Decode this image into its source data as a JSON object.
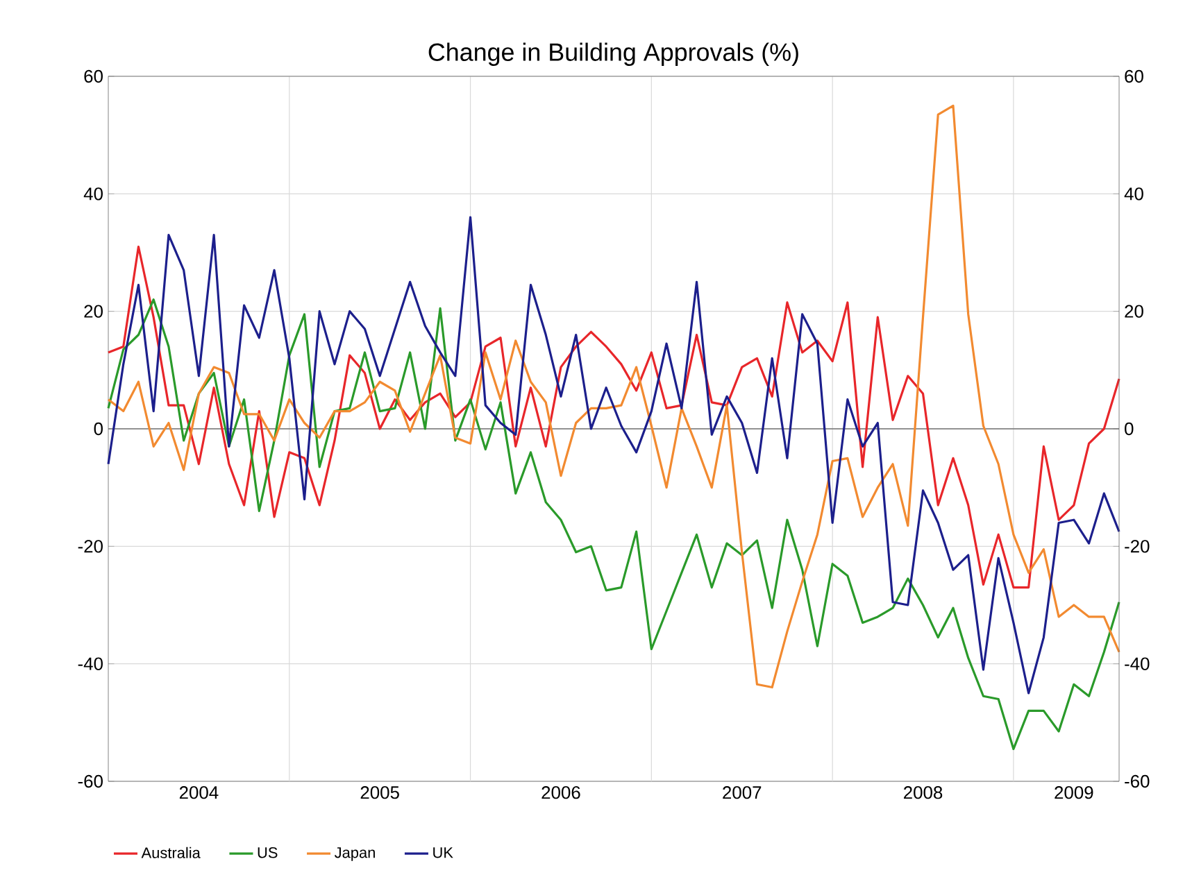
{
  "chart_data": {
    "type": "line",
    "title": "Change in Building Approvals (%)",
    "x": [
      "2004-01",
      "2004-02",
      "2004-03",
      "2004-04",
      "2004-05",
      "2004-06",
      "2004-07",
      "2004-08",
      "2004-09",
      "2004-10",
      "2004-11",
      "2004-12",
      "2005-01",
      "2005-02",
      "2005-03",
      "2005-04",
      "2005-05",
      "2005-06",
      "2005-07",
      "2005-08",
      "2005-09",
      "2005-10",
      "2005-11",
      "2005-12",
      "2006-01",
      "2006-02",
      "2006-03",
      "2006-04",
      "2006-05",
      "2006-06",
      "2006-07",
      "2006-08",
      "2006-09",
      "2006-10",
      "2006-11",
      "2006-12",
      "2007-01",
      "2007-02",
      "2007-03",
      "2007-04",
      "2007-05",
      "2007-06",
      "2007-07",
      "2007-08",
      "2007-09",
      "2007-10",
      "2007-11",
      "2007-12",
      "2008-01",
      "2008-02",
      "2008-03",
      "2008-04",
      "2008-05",
      "2008-06",
      "2008-07",
      "2008-08",
      "2008-09",
      "2008-10",
      "2008-11",
      "2008-12",
      "2009-01",
      "2009-02",
      "2009-03",
      "2009-04",
      "2009-05",
      "2009-06",
      "2009-07",
      "2009-08"
    ],
    "series": [
      {
        "name": "Australia",
        "color": "#e8262a",
        "values": [
          13,
          14,
          31,
          19,
          4,
          4,
          -6,
          7,
          -6,
          -13,
          3,
          -15,
          -4,
          -5,
          -13,
          -2,
          12.5,
          9.5,
          0,
          5,
          1.5,
          4.5,
          6,
          2,
          4.5,
          14,
          15.5,
          -3,
          7,
          -3,
          10.5,
          14,
          16.5,
          14,
          11,
          6.5,
          13,
          3.5,
          4,
          16,
          4.5,
          4,
          10.5,
          12,
          5.5,
          21.5,
          13,
          15,
          11.5,
          21.5,
          -6.5,
          19,
          1.5,
          9,
          6,
          -13,
          -5,
          -13,
          -26.5,
          -18,
          -27,
          -27,
          -3,
          -15.5,
          -13,
          -2.5,
          0,
          8.5
        ]
      },
      {
        "name": "US",
        "color": "#2a9a2a",
        "values": [
          3.5,
          13.5,
          16,
          22,
          14,
          -2,
          6,
          9.5,
          -3,
          5,
          -14,
          -2,
          12.5,
          19.5,
          -6.5,
          3,
          3.5,
          13,
          3,
          3.5,
          13,
          0,
          20.5,
          -2,
          5,
          -3.5,
          4.5,
          -11,
          -4,
          -12.5,
          -15.5,
          -21,
          -20,
          -27.5,
          -27,
          -17.5,
          -37.5,
          -31,
          -24.5,
          -18,
          -27,
          -19.5,
          -21.5,
          -19,
          -30.5,
          -15.5,
          -24,
          -37,
          -23,
          -25,
          -33,
          -32,
          -30.5,
          -25.5,
          -30,
          -35.5,
          -30.5,
          -39,
          -45.5,
          -46,
          -54.5,
          -48,
          -48,
          -51.5,
          -43.5,
          -45.5,
          -38,
          -29.5
        ]
      },
      {
        "name": "Japan",
        "color": "#f28a30",
        "values": [
          5,
          3,
          8,
          -3,
          1,
          -7,
          6,
          10.5,
          9.5,
          2.5,
          2.5,
          -2,
          5,
          1,
          -1.5,
          3,
          3,
          4.5,
          8,
          6.5,
          -0.5,
          6,
          12.5,
          -1.5,
          -2.5,
          13,
          5,
          15,
          8,
          4.5,
          -8,
          1,
          3.5,
          3.5,
          4,
          10.5,
          0.5,
          -10,
          3.5,
          -3,
          -10,
          4,
          -21,
          -43.5,
          -44,
          -34.5,
          -26,
          -18,
          -5.5,
          -5,
          -15,
          -10,
          -6,
          -16.5,
          19,
          53.5,
          55,
          19.5,
          0.5,
          -6,
          -18,
          -24.5,
          -20.5,
          -32,
          -30,
          -32,
          -32,
          -38
        ]
      },
      {
        "name": "UK",
        "color": "#1c1f8c",
        "values": [
          -6,
          11,
          24.5,
          3,
          33,
          27,
          9,
          33,
          -3,
          21,
          15.5,
          27,
          12,
          -12,
          20,
          11,
          20,
          17,
          9,
          17,
          25,
          17.5,
          13,
          9,
          36,
          4,
          1,
          -1,
          24.5,
          16,
          5.5,
          16,
          0,
          7,
          0.5,
          -4,
          3,
          14.5,
          3.5,
          25,
          -1,
          5.5,
          1,
          -7.5,
          12,
          -5,
          19.5,
          14.5,
          -16,
          5,
          -3,
          1,
          -29.5,
          -30,
          -10.5,
          -16,
          -24,
          -21.5,
          -41,
          -22,
          -33,
          -45,
          -35.5,
          -16,
          -15.5,
          -19.5,
          -11,
          -17.5
        ]
      }
    ],
    "xlim": [
      "2004-01",
      "2009-08"
    ],
    "xticks": [
      {
        "value": "2004-07",
        "label": "2004"
      },
      {
        "value": "2005-01",
        "label": null
      },
      {
        "value": "2005-07",
        "label": "2005"
      },
      {
        "value": "2006-01",
        "label": null
      },
      {
        "value": "2006-07",
        "label": "2006"
      },
      {
        "value": "2007-01",
        "label": null
      },
      {
        "value": "2007-07",
        "label": "2007"
      },
      {
        "value": "2008-01",
        "label": null
      },
      {
        "value": "2008-07",
        "label": "2008"
      },
      {
        "value": "2009-01",
        "label": null
      },
      {
        "value": "2009-05",
        "label": "2009"
      }
    ],
    "ylim": [
      -60,
      60
    ],
    "yticks": [
      -60,
      -40,
      -20,
      0,
      20,
      40,
      60
    ],
    "y2lim": [
      -60,
      60
    ],
    "y2ticks": [
      -60,
      -40,
      -20,
      0,
      20,
      40,
      60
    ],
    "grid": true,
    "legend": "bottom"
  }
}
